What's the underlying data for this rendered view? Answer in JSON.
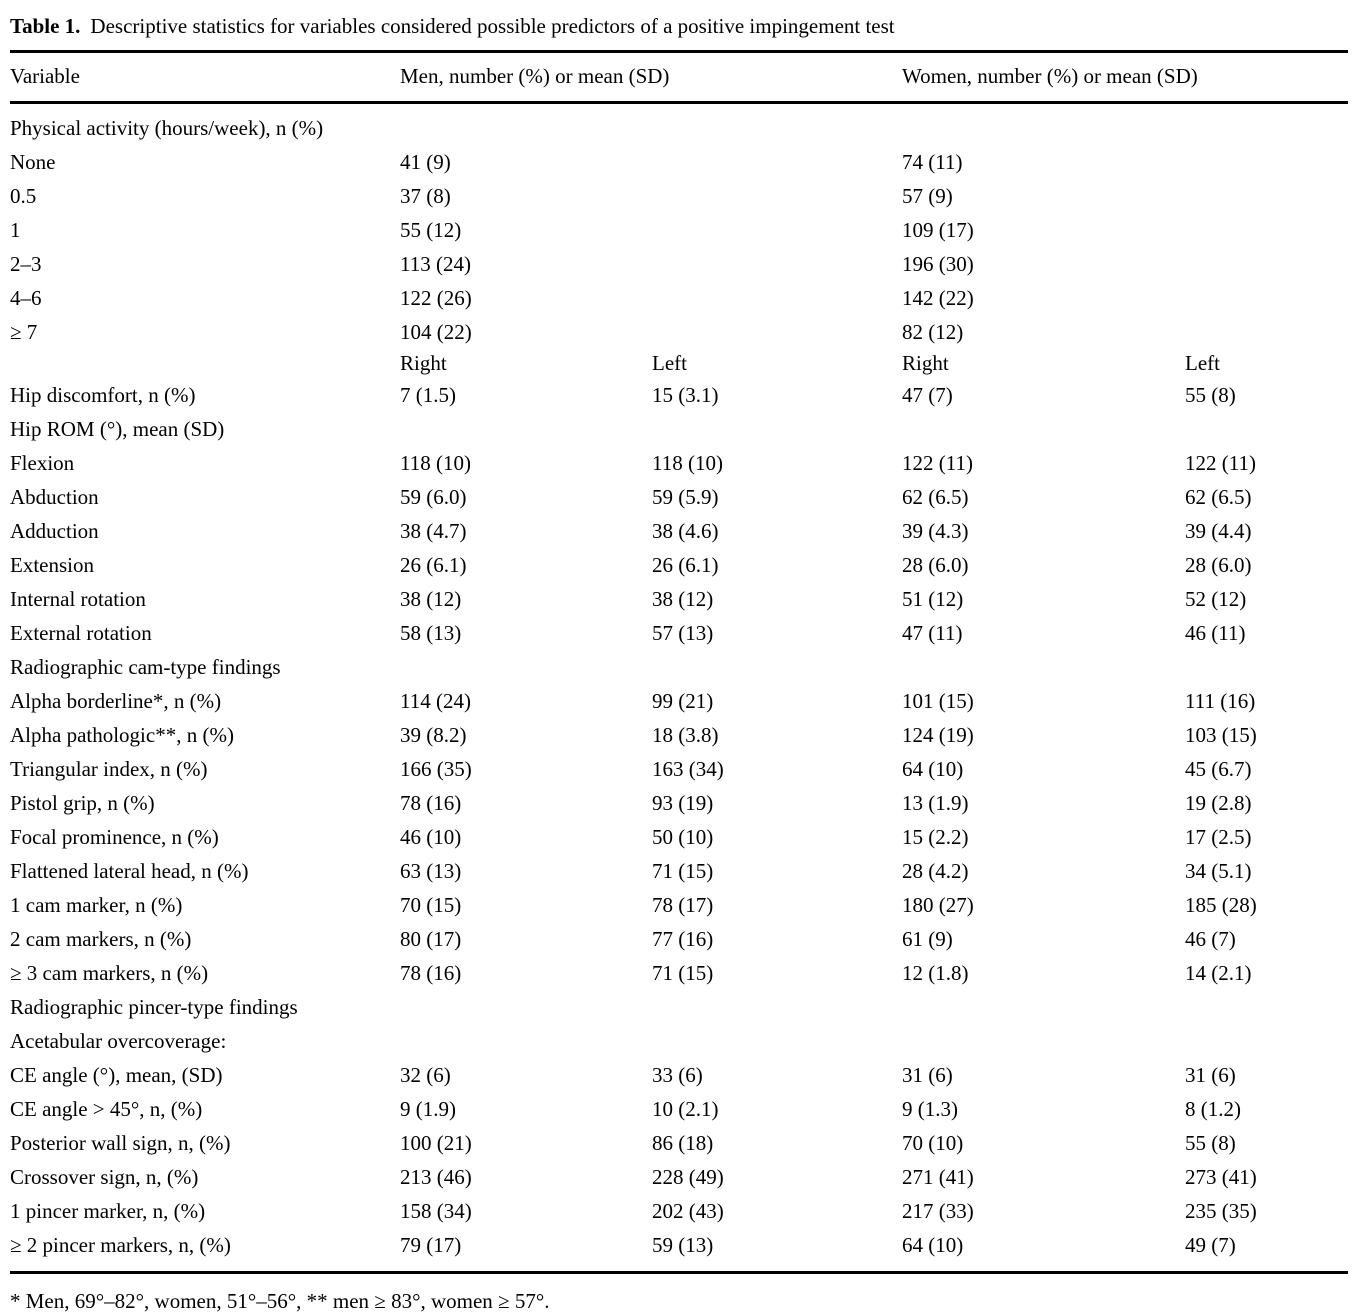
{
  "page": {
    "title_label": "Table 1.",
    "title_text": "Descriptive statistics for variables considered possible predictors of a positive impingement test",
    "footnote": "* Men, 69°–82°, women, 51°–56°, ** men ≥ 83°, women ≥ 57°."
  },
  "colors": {
    "text": "#000000",
    "background": "#ffffff",
    "rule": "#000000"
  },
  "table": {
    "header": {
      "variable": "Variable",
      "men": "Men, number (%) or mean (SD)",
      "women": "Women, number (%) or mean (SD)"
    },
    "rows": [
      {
        "type": "section",
        "indent": 0,
        "label": "Physical activity (hours/week), n (%)",
        "cells": [
          "",
          "",
          "",
          ""
        ]
      },
      {
        "type": "data",
        "indent": 1,
        "label": "None",
        "cells": [
          "41 (9)",
          "",
          "74 (11)",
          ""
        ]
      },
      {
        "type": "data",
        "indent": 1,
        "label": "0.5",
        "cells": [
          "37 (8)",
          "",
          "57 (9)",
          ""
        ]
      },
      {
        "type": "data",
        "indent": 1,
        "label": "1",
        "cells": [
          "55 (12)",
          "",
          "109 (17)",
          ""
        ]
      },
      {
        "type": "data",
        "indent": 1,
        "label": "2–3",
        "cells": [
          "113 (24)",
          "",
          "196 (30)",
          ""
        ]
      },
      {
        "type": "data",
        "indent": 1,
        "label": "4–6",
        "cells": [
          "122 (26)",
          "",
          "142 (22)",
          ""
        ]
      },
      {
        "type": "data",
        "indent": 1,
        "label": "≥ 7",
        "cells": [
          "104 (22)",
          "",
          "82 (12)",
          ""
        ]
      },
      {
        "type": "subheader",
        "indent": 0,
        "label": "",
        "cells": [
          "Right",
          "Left",
          "Right",
          "Left"
        ]
      },
      {
        "type": "data",
        "indent": 0,
        "label": "Hip discomfort, n (%)",
        "cells": [
          "7 (1.5)",
          "15 (3.1)",
          "47 (7)",
          "55 (8)"
        ]
      },
      {
        "type": "section",
        "indent": 0,
        "label": "Hip ROM (°), mean (SD)",
        "cells": [
          "",
          "",
          "",
          ""
        ]
      },
      {
        "type": "data",
        "indent": 1,
        "label": "Flexion",
        "cells": [
          "118 (10)",
          "118 (10)",
          "122 (11)",
          "122 (11)"
        ]
      },
      {
        "type": "data",
        "indent": 1,
        "label": "Abduction",
        "cells": [
          "59 (6.0)",
          "59 (5.9)",
          "62 (6.5)",
          "62 (6.5)"
        ]
      },
      {
        "type": "data",
        "indent": 1,
        "label": "Adduction",
        "cells": [
          "38 (4.7)",
          "38 (4.6)",
          "39 (4.3)",
          "39 (4.4)"
        ]
      },
      {
        "type": "data",
        "indent": 1,
        "label": "Extension",
        "cells": [
          "26 (6.1)",
          "26 (6.1)",
          "28 (6.0)",
          "28 (6.0)"
        ]
      },
      {
        "type": "data",
        "indent": 1,
        "label": "Internal rotation",
        "cells": [
          "38 (12)",
          "38 (12)",
          "51 (12)",
          "52 (12)"
        ]
      },
      {
        "type": "data",
        "indent": 1,
        "label": "External rotation",
        "cells": [
          "58 (13)",
          "57 (13)",
          "47 (11)",
          "46 (11)"
        ]
      },
      {
        "type": "section",
        "indent": 0,
        "label": "Radiographic cam-type findings",
        "cells": [
          "",
          "",
          "",
          ""
        ]
      },
      {
        "type": "data",
        "indent": 1,
        "label": "Alpha borderline*, n (%)",
        "cells": [
          "114 (24)",
          "99 (21)",
          "101 (15)",
          "111 (16)"
        ]
      },
      {
        "type": "data",
        "indent": 1,
        "label": "Alpha pathologic**, n (%)",
        "cells": [
          "39 (8.2)",
          "18 (3.8)",
          "124 (19)",
          "103 (15)"
        ]
      },
      {
        "type": "data",
        "indent": 1,
        "label": "Triangular index, n (%)",
        "cells": [
          "166 (35)",
          "163 (34)",
          "64 (10)",
          "45 (6.7)"
        ]
      },
      {
        "type": "data",
        "indent": 1,
        "label": "Pistol grip, n (%)",
        "cells": [
          "78 (16)",
          "93 (19)",
          "13 (1.9)",
          "19 (2.8)"
        ]
      },
      {
        "type": "data",
        "indent": 1,
        "label": "Focal prominence, n (%)",
        "cells": [
          "46 (10)",
          "50 (10)",
          "15 (2.2)",
          "17 (2.5)"
        ]
      },
      {
        "type": "data",
        "indent": 1,
        "label": "Flattened lateral head, n (%)",
        "cells": [
          "63 (13)",
          "71 (15)",
          "28 (4.2)",
          "34 (5.1)"
        ]
      },
      {
        "type": "data",
        "indent": 1,
        "label": "1 cam marker, n (%)",
        "cells": [
          "70 (15)",
          "78 (17)",
          "180 (27)",
          "185 (28)"
        ]
      },
      {
        "type": "data",
        "indent": 1,
        "label": "2 cam markers, n (%)",
        "cells": [
          "80 (17)",
          "77 (16)",
          "61 (9)",
          "46 (7)"
        ]
      },
      {
        "type": "data",
        "indent": 1,
        "label": "≥ 3 cam markers, n (%)",
        "cells": [
          "78 (16)",
          "71 (15)",
          "12 (1.8)",
          "14 (2.1)"
        ]
      },
      {
        "type": "section",
        "indent": 0,
        "label": "Radiographic pincer-type findings",
        "cells": [
          "",
          "",
          "",
          ""
        ]
      },
      {
        "type": "section",
        "indent": 1,
        "label": "Acetabular overcoverage:",
        "cells": [
          "",
          "",
          "",
          ""
        ]
      },
      {
        "type": "data",
        "indent": 2,
        "label": "CE angle (°), mean, (SD)",
        "cells": [
          "32 (6)",
          "33 (6)",
          "31 (6)",
          "31 (6)"
        ]
      },
      {
        "type": "data",
        "indent": 2,
        "label": "CE angle > 45°, n, (%)",
        "cells": [
          "9 (1.9)",
          "10 (2.1)",
          "9 (1.3)",
          "8 (1.2)"
        ]
      },
      {
        "type": "data",
        "indent": 1,
        "label": "Posterior wall sign, n, (%)",
        "cells": [
          "100 (21)",
          "86 (18)",
          "70 (10)",
          "55 (8)"
        ]
      },
      {
        "type": "data",
        "indent": 1,
        "label": "Crossover sign, n, (%)",
        "cells": [
          "213 (46)",
          "228 (49)",
          "271 (41)",
          "273 (41)"
        ]
      },
      {
        "type": "data",
        "indent": 1,
        "label": "1 pincer marker, n, (%)",
        "cells": [
          "158 (34)",
          "202 (43)",
          "217 (33)",
          "235 (35)"
        ]
      },
      {
        "type": "data",
        "indent": 1,
        "label": "≥ 2 pincer markers, n, (%)",
        "cells": [
          "79 (17)",
          "59 (13)",
          "64 (10)",
          "49 (7)"
        ]
      }
    ]
  }
}
